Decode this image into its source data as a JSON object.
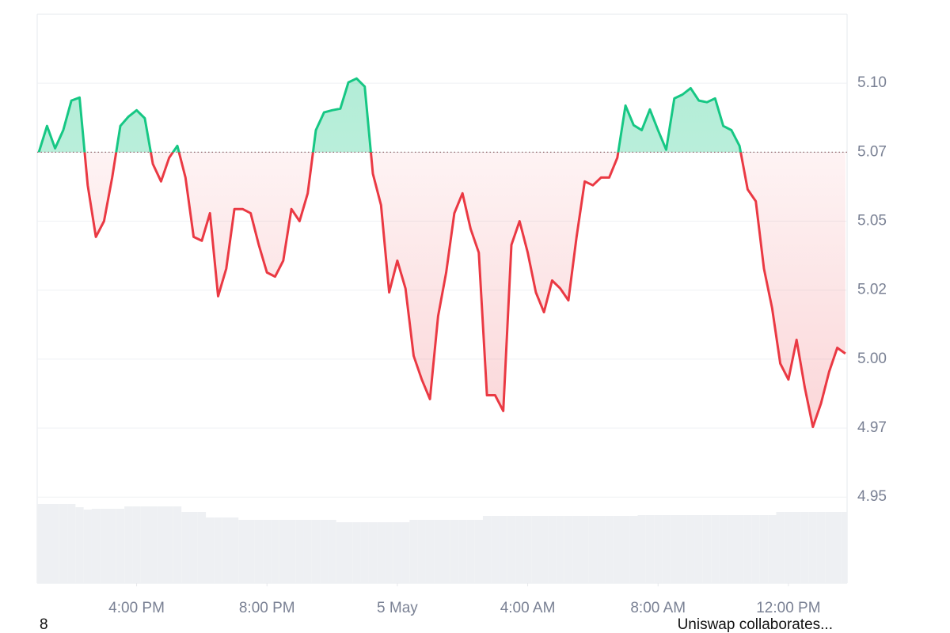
{
  "chart_data": {
    "type": "line",
    "x": [
      13,
      13.25,
      13.5,
      13.75,
      14,
      14.25,
      14.5,
      14.75,
      15,
      15.25,
      15.5,
      15.75,
      16,
      16.25,
      16.5,
      16.75,
      17,
      17.25,
      17.5,
      17.75,
      18,
      18.25,
      18.5,
      18.75,
      19,
      19.25,
      19.5,
      19.75,
      20,
      20.25,
      20.5,
      20.75,
      21,
      21.25,
      21.5,
      21.75,
      22,
      22.25,
      22.5,
      22.75,
      23,
      23.25,
      23.5,
      23.75,
      24,
      24.25,
      24.5,
      24.75,
      25,
      25.25,
      25.5,
      25.75,
      26,
      26.25,
      26.5,
      26.75,
      27,
      27.25,
      27.5,
      27.75,
      28,
      28.25,
      28.5,
      28.75,
      29,
      29.25,
      29.5,
      29.75,
      30,
      30.25,
      30.5,
      30.75,
      31,
      31.25,
      31.5,
      31.75,
      32,
      32.25,
      32.5,
      32.75,
      33,
      33.25,
      33.5,
      33.75,
      34,
      34.25,
      34.5,
      34.75,
      35,
      35.25,
      35.5,
      35.75,
      36,
      36.25,
      36.5,
      36.75,
      37,
      37.25,
      37.5,
      37.75
    ],
    "series": [
      {
        "values": [
          5.075,
          5.0845,
          5.0764,
          5.083,
          5.0937,
          5.0948,
          5.063,
          5.0443,
          5.05,
          5.0658,
          5.0845,
          5.0879,
          5.0902,
          5.0873,
          5.0707,
          5.0644,
          5.073,
          5.0773,
          5.0658,
          5.0443,
          5.0429,
          5.0529,
          5.0228,
          5.0328,
          5.0544,
          5.0544,
          5.0529,
          5.0414,
          5.0314,
          5.0299,
          5.0357,
          5.0544,
          5.05,
          5.0601,
          5.083,
          5.0894,
          5.0902,
          5.0908,
          5.1003,
          5.1017,
          5.0988,
          5.0672,
          5.0558,
          5.0242,
          5.0357,
          5.0256,
          5.0012,
          4.9926,
          4.9855,
          5.0156,
          5.0314,
          5.0529,
          5.0601,
          5.0472,
          5.0386,
          4.9869,
          4.9869,
          4.9812,
          5.0414,
          5.05,
          5.0386,
          5.0242,
          5.017,
          5.0285,
          5.0256,
          5.0213,
          5.0443,
          5.0644,
          5.063,
          5.0658,
          5.0658,
          5.073,
          5.0919,
          5.0848,
          5.083,
          5.0905,
          5.083,
          5.0759,
          5.0945,
          5.0959,
          5.0982,
          5.0937,
          5.0931,
          5.0945,
          5.0845,
          5.083,
          5.0773,
          5.0615,
          5.0572,
          5.0328,
          5.0185,
          4.9984,
          4.9926,
          5.007,
          4.9898,
          4.9754,
          4.984,
          4.9955,
          5.0041,
          5.002
        ],
        "up_color": "#16c784",
        "down_color": "#ea3943"
      }
    ],
    "volume": {
      "color": "#eef0f3",
      "values": [
        100,
        100,
        100,
        100,
        100,
        96,
        93,
        94,
        94,
        94,
        94,
        97,
        97,
        97,
        97,
        97,
        97,
        97,
        90,
        90,
        90,
        83,
        83,
        83,
        83,
        80,
        80,
        80,
        80,
        80,
        80,
        80,
        80,
        80,
        80,
        80,
        80,
        77,
        77,
        77,
        77,
        77,
        77,
        77,
        77,
        77,
        80,
        80,
        80,
        80,
        80,
        80,
        80,
        80,
        80,
        85,
        85,
        85,
        85,
        85,
        85,
        85,
        85,
        85,
        85,
        85,
        85,
        85,
        85,
        85,
        85,
        85,
        85,
        85,
        86,
        86,
        86,
        86,
        86,
        86,
        86,
        86,
        86,
        86,
        86,
        86,
        86,
        86,
        86,
        86,
        86,
        90,
        90,
        90,
        90,
        90,
        90,
        90,
        90,
        90
      ]
    },
    "baseline": 5.075,
    "xlim": [
      12.95,
      37.8
    ],
    "xticks": [
      {
        "value": 16,
        "label": "4:00 PM"
      },
      {
        "value": 20,
        "label": "8:00 PM"
      },
      {
        "value": 24,
        "label": "5 May"
      },
      {
        "value": 28,
        "label": "4:00 AM"
      },
      {
        "value": 32,
        "label": "8:00 AM"
      },
      {
        "value": 36,
        "label": "12:00 PM"
      }
    ],
    "ylim": [
      4.9188,
      5.125
    ],
    "yticks": [
      4.95,
      {
        "value": 4.975,
        "label": "4.97"
      },
      {
        "value": 5.0,
        "label": "5.00"
      },
      {
        "value": 5.025,
        "label": "5.02"
      },
      {
        "value": 5.05,
        "label": "5.05"
      },
      {
        "value": 5.075,
        "label": "5.07"
      },
      {
        "value": 5.1,
        "label": "5.10"
      }
    ],
    "grid": true
  },
  "footer": {
    "left": "8",
    "right": "Uniswap collaborates..."
  }
}
